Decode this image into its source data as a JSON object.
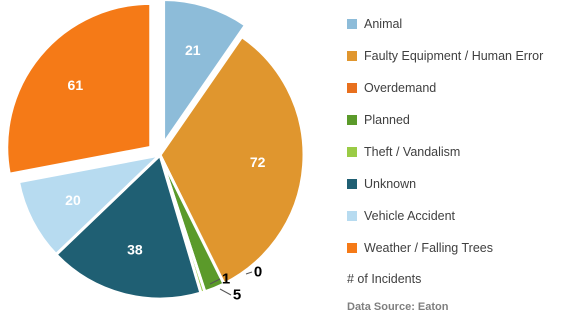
{
  "chart_data": {
    "type": "pie",
    "title": "",
    "slices": [
      {
        "name": "Animal",
        "value": 21,
        "color": "#8DBCD9"
      },
      {
        "name": "Faulty Equipment / Human Error",
        "value": 72,
        "color": "#E0962E"
      },
      {
        "name": "Overdemand",
        "value": 0,
        "color": "#E8701E"
      },
      {
        "name": "Planned",
        "value": 5,
        "color": "#5B9A2A"
      },
      {
        "name": "Theft / Vandalism",
        "value": 1,
        "color": "#9ACB45"
      },
      {
        "name": "Unknown",
        "value": 38,
        "color": "#1F5F73"
      },
      {
        "name": "Vehicle Accident",
        "value": 20,
        "color": "#B7DBF0"
      },
      {
        "name": "Weather / Falling Trees",
        "value": 61,
        "color": "#F57A17"
      }
    ],
    "exploded": [
      "Animal",
      "Weather / Falling Trees"
    ],
    "legend_position": "right",
    "legend_note": "# of Incidents",
    "source": "Data Source: Eaton"
  }
}
